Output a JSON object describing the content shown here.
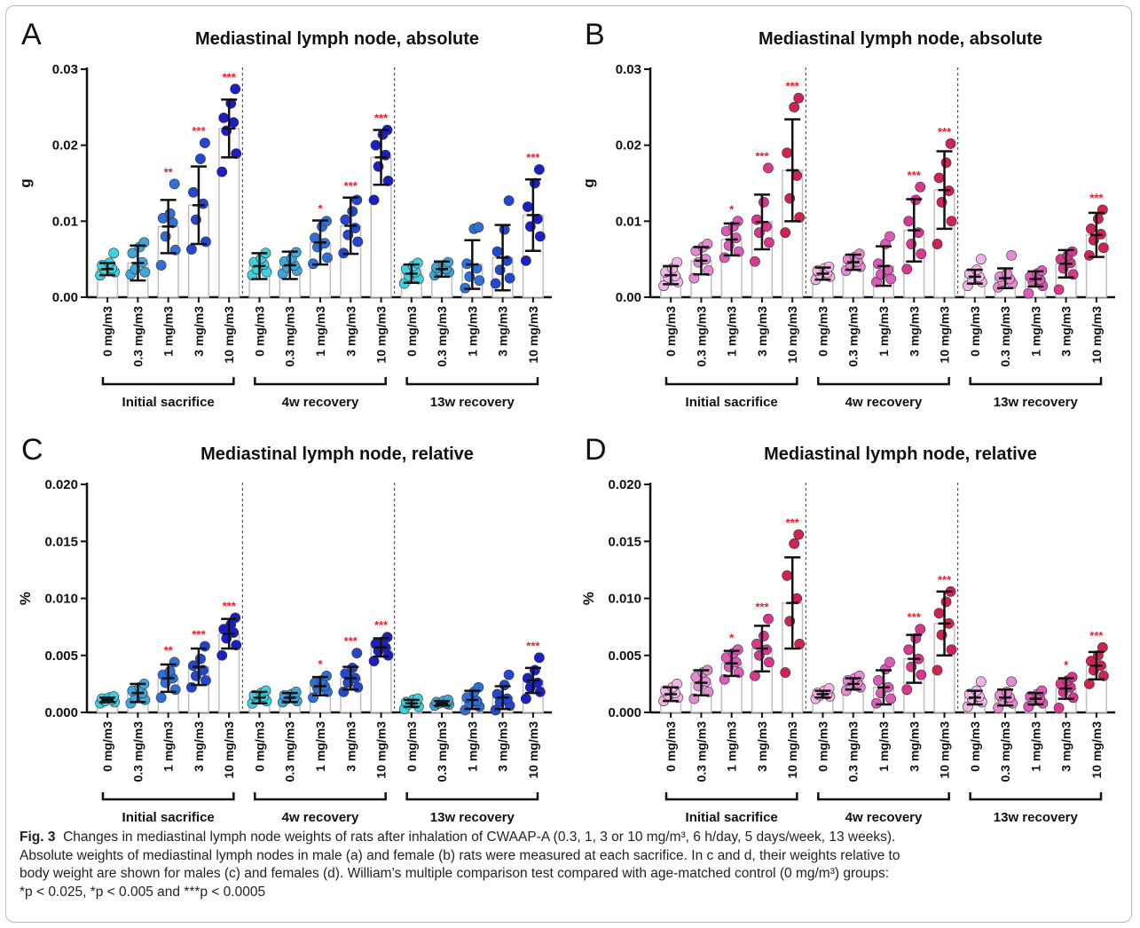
{
  "caption": {
    "fig_label": "Fig. 3",
    "lines": [
      "Changes in mediastinal lymph node weights of rats after inhalation of CWAAP-A (0.3, 1, 3 or 10 mg/m³, 6 h/day, 5 days/week, 13 weeks).",
      "Absolute weights of mediastinal lymph nodes in male (a) and female (b) rats were measured at each sacrifice. In c and d, their weights relative to",
      "body weight are shown for males (c) and females (d). William’s multiple comparison test compared with age-matched control (0 mg/m³) groups:",
      "*p < 0.025, *p < 0.005 and ***p < 0.0005"
    ]
  },
  "colors": {
    "male_shades": [
      "#3fd0e0",
      "#3fa6dc",
      "#2f6fd8",
      "#2447cf",
      "#1b1fc4"
    ],
    "female_shades": [
      "#f2b3e6",
      "#e68ad0",
      "#dc5ab8",
      "#d8378e",
      "#cf2350"
    ],
    "bar_fill": "#ffffff",
    "bar_stroke": "#bfbfbf",
    "star": "#e8202a"
  },
  "chart_data": [
    {
      "panel": "A",
      "type": "bar",
      "title": "Mediastinal lymph node, absolute",
      "ylabel": "g",
      "ylim": [
        0,
        0.03
      ],
      "yticks": [
        "0.00",
        "0.01",
        "0.02",
        "0.03"
      ],
      "sex": "male",
      "categories": [
        "0 mg/m3",
        "0.3 mg/m3",
        "1 mg/m3",
        "3 mg/m3",
        "10 mg/m3"
      ],
      "groups": [
        {
          "label": "Initial sacrifice",
          "means": [
            0.0037,
            0.0045,
            0.0093,
            0.0121,
            0.0222
          ],
          "sd": [
            0.0008,
            0.0023,
            0.0035,
            0.0051,
            0.0038
          ],
          "stars": [
            "",
            "",
            "**",
            "***",
            "***"
          ],
          "points": [
            [
              0.0029,
              0.0033,
              0.0036,
              0.0038,
              0.0042,
              0.0045,
              0.0058
            ],
            [
              0.003,
              0.0033,
              0.0037,
              0.0046,
              0.0058,
              0.0066,
              0.0072
            ],
            [
              0.0042,
              0.0062,
              0.008,
              0.0098,
              0.0104,
              0.011,
              0.0149
            ],
            [
              0.0063,
              0.0073,
              0.0102,
              0.0123,
              0.0138,
              0.0182,
              0.0203
            ],
            [
              0.0165,
              0.0189,
              0.0219,
              0.023,
              0.0236,
              0.0255,
              0.0274
            ]
          ]
        },
        {
          "label": "4w recovery",
          "means": [
            0.0041,
            0.0042,
            0.0072,
            0.0094,
            0.0184
          ],
          "sd": [
            0.0017,
            0.0018,
            0.0029,
            0.0037,
            0.0036
          ],
          "stars": [
            "",
            "",
            "*",
            "***",
            "***"
          ],
          "points": [
            [
              0.0029,
              0.0033,
              0.0037,
              0.0043,
              0.0046,
              0.0051,
              0.0058
            ],
            [
              0.0031,
              0.0035,
              0.0039,
              0.0042,
              0.0047,
              0.0051,
              0.0059
            ],
            [
              0.0044,
              0.0052,
              0.0066,
              0.0071,
              0.0078,
              0.0093,
              0.01
            ],
            [
              0.0058,
              0.0073,
              0.0082,
              0.0091,
              0.0102,
              0.0113,
              0.0128
            ],
            [
              0.0128,
              0.0153,
              0.0172,
              0.0187,
              0.02,
              0.0214,
              0.022
            ]
          ]
        },
        {
          "label": "13w recovery",
          "means": [
            0.0031,
            0.0037,
            0.0043,
            0.0052,
            0.0108
          ],
          "sd": [
            0.0012,
            0.001,
            0.0032,
            0.0043,
            0.0047
          ],
          "stars": [
            "",
            "",
            "",
            "",
            "***"
          ],
          "points": [
            [
              0.0018,
              0.0024,
              0.0028,
              0.0033,
              0.0037,
              0.0041,
              0.0045
            ],
            [
              0.0029,
              0.0033,
              0.0035,
              0.0037,
              0.0039,
              0.0042,
              0.0046
            ],
            [
              0.0012,
              0.0022,
              0.0027,
              0.0038,
              0.0044,
              0.009,
              0.0092
            ],
            [
              0.0018,
              0.0025,
              0.0036,
              0.0048,
              0.006,
              0.0089,
              0.0127
            ],
            [
              0.0048,
              0.008,
              0.0093,
              0.0103,
              0.0119,
              0.015,
              0.0168
            ]
          ]
        }
      ]
    },
    {
      "panel": "B",
      "type": "bar",
      "title": "Mediastinal lymph node, absolute",
      "ylabel": "g",
      "ylim": [
        0,
        0.03
      ],
      "yticks": [
        "0.00",
        "0.01",
        "0.02",
        "0.03"
      ],
      "sex": "female",
      "categories": [
        "0 mg/m3",
        "0.3 mg/m3",
        "1 mg/m3",
        "3 mg/m3",
        "10 mg/m3"
      ],
      "groups": [
        {
          "label": "Initial sacrifice",
          "means": [
            0.0029,
            0.0048,
            0.0076,
            0.0099,
            0.0167
          ],
          "sd": [
            0.0012,
            0.0018,
            0.0021,
            0.0036,
            0.0067
          ],
          "stars": [
            "",
            "",
            "*",
            "***",
            "***"
          ],
          "points": [
            [
              0.0015,
              0.002,
              0.0026,
              0.0028,
              0.0033,
              0.0038,
              0.0046
            ],
            [
              0.0025,
              0.0035,
              0.0046,
              0.005,
              0.0061,
              0.0066,
              0.007
            ],
            [
              0.0052,
              0.006,
              0.0068,
              0.0078,
              0.0087,
              0.0093,
              0.01
            ],
            [
              0.0047,
              0.0072,
              0.0085,
              0.0093,
              0.0102,
              0.0125,
              0.017
            ],
            [
              0.0085,
              0.0105,
              0.013,
              0.016,
              0.019,
              0.025,
              0.0262
            ]
          ]
        },
        {
          "label": "4w recovery",
          "means": [
            0.0031,
            0.0046,
            0.0041,
            0.0088,
            0.0141
          ],
          "sd": [
            0.0008,
            0.001,
            0.0026,
            0.0041,
            0.0051
          ],
          "stars": [
            "",
            "",
            "",
            "***",
            "***"
          ],
          "points": [
            [
              0.0023,
              0.0027,
              0.003,
              0.0032,
              0.0035,
              0.0038,
              0.004
            ],
            [
              0.0035,
              0.004,
              0.0043,
              0.0047,
              0.005,
              0.0053,
              0.0057
            ],
            [
              0.002,
              0.0024,
              0.003,
              0.0036,
              0.0044,
              0.007,
              0.008
            ],
            [
              0.0037,
              0.0057,
              0.007,
              0.0085,
              0.01,
              0.0128,
              0.0145
            ],
            [
              0.007,
              0.01,
              0.0125,
              0.014,
              0.0157,
              0.0177,
              0.0202
            ]
          ]
        },
        {
          "label": "13w recovery",
          "means": [
            0.0027,
            0.0025,
            0.0024,
            0.0044,
            0.0082
          ],
          "sd": [
            0.0009,
            0.0013,
            0.001,
            0.0018,
            0.0029
          ],
          "stars": [
            "",
            "",
            "",
            "",
            "***"
          ],
          "points": [
            [
              0.0015,
              0.002,
              0.0023,
              0.0027,
              0.0031,
              0.0036,
              0.005
            ],
            [
              0.0013,
              0.0018,
              0.0021,
              0.0024,
              0.0027,
              0.0031,
              0.0055
            ],
            [
              0.0005,
              0.0015,
              0.002,
              0.0023,
              0.0027,
              0.0031,
              0.0035
            ],
            [
              0.001,
              0.003,
              0.0038,
              0.0045,
              0.005,
              0.0055,
              0.006
            ],
            [
              0.0055,
              0.0065,
              0.0075,
              0.0083,
              0.009,
              0.0103,
              0.0115
            ]
          ]
        }
      ]
    },
    {
      "panel": "C",
      "type": "bar",
      "title": "Mediastinal lymph node, relative",
      "ylabel": "%",
      "ylim": [
        0,
        0.02
      ],
      "yticks": [
        "0.000",
        "0.005",
        "0.010",
        "0.015",
        "0.020"
      ],
      "sex": "male",
      "categories": [
        "0 mg/m3",
        "0.3 mg/m3",
        "1 mg/m3",
        "3 mg/m3",
        "10 mg/m3"
      ],
      "groups": [
        {
          "label": "Initial sacrifice",
          "means": [
            0.0011,
            0.0017,
            0.003,
            0.004,
            0.0069
          ],
          "sd": [
            0.0002,
            0.0008,
            0.0012,
            0.0016,
            0.0013
          ],
          "stars": [
            "",
            "",
            "**",
            "***",
            "***"
          ],
          "points": [
            [
              0.0008,
              0.0009,
              0.001,
              0.0011,
              0.0012,
              0.0013,
              0.0014
            ],
            [
              0.0008,
              0.0011,
              0.0013,
              0.0017,
              0.0019,
              0.0022,
              0.0025
            ],
            [
              0.0013,
              0.002,
              0.0026,
              0.003,
              0.0033,
              0.0036,
              0.0044
            ],
            [
              0.0022,
              0.0028,
              0.0032,
              0.0037,
              0.0041,
              0.0047,
              0.0058
            ],
            [
              0.005,
              0.0059,
              0.0065,
              0.007,
              0.0073,
              0.0077,
              0.0083
            ]
          ]
        },
        {
          "label": "4w recovery",
          "means": [
            0.0013,
            0.0013,
            0.0023,
            0.003,
            0.0057
          ],
          "sd": [
            0.0005,
            0.0004,
            0.0008,
            0.001,
            0.0008
          ],
          "stars": [
            "",
            "",
            "*",
            "***",
            "***"
          ],
          "points": [
            [
              0.0008,
              0.001,
              0.0012,
              0.0014,
              0.0015,
              0.0017,
              0.0019
            ],
            [
              0.0009,
              0.001,
              0.0012,
              0.0013,
              0.0015,
              0.0016,
              0.0018
            ],
            [
              0.0013,
              0.0018,
              0.0021,
              0.0023,
              0.0026,
              0.0028,
              0.0032
            ],
            [
              0.0018,
              0.0022,
              0.0026,
              0.003,
              0.0034,
              0.0039,
              0.0052
            ],
            [
              0.0045,
              0.005,
              0.0054,
              0.0057,
              0.006,
              0.0062,
              0.0066
            ]
          ]
        },
        {
          "label": "13w recovery",
          "means": [
            0.0008,
            0.0008,
            0.0011,
            0.0013,
            0.0028
          ],
          "sd": [
            0.0003,
            0.0002,
            0.0008,
            0.001,
            0.0011
          ],
          "stars": [
            "",
            "",
            "",
            "",
            "***"
          ],
          "points": [
            [
              0.0003,
              0.0005,
              0.0007,
              0.0008,
              0.0009,
              0.0011,
              0.0012
            ],
            [
              0.0006,
              0.0007,
              0.0008,
              0.0008,
              0.0009,
              0.001,
              0.0011
            ],
            [
              0.0002,
              0.0005,
              0.0008,
              0.001,
              0.0013,
              0.0018,
              0.0022
            ],
            [
              0.0002,
              0.0006,
              0.0009,
              0.0012,
              0.0016,
              0.0024,
              0.0033
            ],
            [
              0.0012,
              0.0018,
              0.0022,
              0.0026,
              0.003,
              0.0037,
              0.0048
            ]
          ]
        }
      ]
    },
    {
      "panel": "D",
      "type": "bar",
      "title": "Mediastinal lymph node, relative",
      "ylabel": "%",
      "ylim": [
        0,
        0.02
      ],
      "yticks": [
        "0.000",
        "0.005",
        "0.010",
        "0.015",
        "0.020"
      ],
      "sex": "female",
      "categories": [
        "0 mg/m3",
        "0.3 mg/m3",
        "1 mg/m3",
        "3 mg/m3",
        "10 mg/m3"
      ],
      "groups": [
        {
          "label": "Initial sacrifice",
          "means": [
            0.0016,
            0.0026,
            0.0043,
            0.0056,
            0.0096
          ],
          "sd": [
            0.0006,
            0.0011,
            0.0011,
            0.002,
            0.004
          ],
          "stars": [
            "",
            "",
            "*",
            "***",
            "***"
          ],
          "points": [
            [
              0.001,
              0.0013,
              0.0015,
              0.0017,
              0.0019,
              0.0022,
              0.0025
            ],
            [
              0.0012,
              0.0018,
              0.0023,
              0.0027,
              0.0031,
              0.0035,
              0.0037
            ],
            [
              0.0029,
              0.0035,
              0.004,
              0.0044,
              0.0048,
              0.0052,
              0.0055
            ],
            [
              0.0032,
              0.0044,
              0.005,
              0.0055,
              0.006,
              0.0067,
              0.0082
            ],
            [
              0.0035,
              0.006,
              0.008,
              0.01,
              0.012,
              0.0148,
              0.0156
            ]
          ]
        },
        {
          "label": "4w recovery",
          "means": [
            0.0016,
            0.0025,
            0.0022,
            0.0047,
            0.0078
          ],
          "sd": [
            0.0003,
            0.0005,
            0.0015,
            0.0021,
            0.0028
          ],
          "stars": [
            "",
            "",
            "",
            "***",
            "***"
          ],
          "points": [
            [
              0.0012,
              0.0014,
              0.0015,
              0.0016,
              0.0017,
              0.0019,
              0.0021
            ],
            [
              0.0019,
              0.0022,
              0.0024,
              0.0026,
              0.0028,
              0.003,
              0.0032
            ],
            [
              0.0008,
              0.0012,
              0.0017,
              0.0022,
              0.0028,
              0.0038,
              0.0044
            ],
            [
              0.002,
              0.0033,
              0.004,
              0.0047,
              0.0055,
              0.0065,
              0.0073
            ],
            [
              0.0037,
              0.0055,
              0.0068,
              0.0078,
              0.0087,
              0.0097,
              0.0106
            ]
          ]
        },
        {
          "label": "13w recovery",
          "means": [
            0.0013,
            0.0013,
            0.0012,
            0.0021,
            0.0041
          ],
          "sd": [
            0.0006,
            0.0007,
            0.0005,
            0.0009,
            0.0012
          ],
          "stars": [
            "",
            "",
            "",
            "*",
            "***"
          ],
          "points": [
            [
              0.0005,
              0.0009,
              0.0012,
              0.0014,
              0.0016,
              0.0019,
              0.0027
            ],
            [
              0.0004,
              0.0008,
              0.0011,
              0.0013,
              0.0015,
              0.0018,
              0.0027
            ],
            [
              0.0005,
              0.0008,
              0.001,
              0.0012,
              0.0014,
              0.0016,
              0.0019
            ],
            [
              0.0004,
              0.0013,
              0.0018,
              0.0022,
              0.0025,
              0.0028,
              0.0031
            ],
            [
              0.0025,
              0.0032,
              0.0037,
              0.0041,
              0.0045,
              0.005,
              0.0057
            ]
          ]
        }
      ]
    }
  ]
}
